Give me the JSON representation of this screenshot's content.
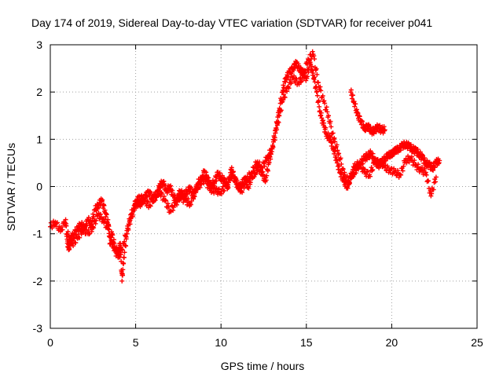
{
  "chart_data": {
    "type": "scatter",
    "title": "Day 174 of 2019, Sidereal Day-to-day VTEC variation (SDTVAR) for receiver p041",
    "xlabel": "GPS time / hours",
    "ylabel": "SDTVAR / TECUs",
    "xlim": [
      0,
      25
    ],
    "ylim": [
      -3,
      3
    ],
    "xticks": [
      "0",
      "5",
      "10",
      "15",
      "20",
      "25"
    ],
    "yticks": [
      "-3",
      "-2",
      "-1",
      "0",
      "1",
      "2",
      "3"
    ],
    "grid": true,
    "marker": "+",
    "series": [
      {
        "name": "SDTVAR",
        "color": "#ff0000",
        "x": [
          0.0,
          0.3,
          0.6,
          0.9,
          1.0,
          1.1,
          1.2,
          1.4,
          1.6,
          1.8,
          2.0,
          2.2,
          2.4,
          2.6,
          2.8,
          3.0,
          3.2,
          3.4,
          3.5,
          3.6,
          3.8,
          4.0,
          4.1,
          4.2,
          4.3,
          4.5,
          4.7,
          4.9,
          5.0,
          5.2,
          5.4,
          5.6,
          5.8,
          6.0,
          6.2,
          6.4,
          6.6,
          6.8,
          7.0,
          7.2,
          7.4,
          7.6,
          7.8,
          8.0,
          8.2,
          8.4,
          8.6,
          8.8,
          9.0,
          9.2,
          9.4,
          9.6,
          9.8,
          10.0,
          10.2,
          10.4,
          10.6,
          10.8,
          11.0,
          11.2,
          11.4,
          11.6,
          11.8,
          12.0,
          12.2,
          12.4,
          12.6,
          12.8,
          13.0,
          13.2,
          13.4,
          13.6,
          13.8,
          14.0,
          14.2,
          14.4,
          14.6,
          14.8,
          15.0,
          15.2,
          15.4,
          15.6,
          15.8,
          16.0,
          16.2,
          16.4,
          16.6,
          16.8,
          17.0,
          17.2,
          17.4,
          17.6,
          17.8,
          18.0,
          18.2,
          18.4,
          18.6,
          18.8,
          19.0,
          19.2,
          19.4,
          19.6,
          19.8,
          20.0,
          20.2,
          20.4,
          20.6,
          20.8,
          21.0,
          21.2,
          21.4,
          21.6,
          21.8,
          22.0,
          22.2,
          22.4,
          22.6,
          22.8
        ],
        "y": [
          -0.85,
          -0.75,
          -0.95,
          -0.7,
          -1.2,
          -1.3,
          -1.1,
          -1.0,
          -0.9,
          -0.8,
          -0.9,
          -0.7,
          -0.8,
          -0.5,
          -0.4,
          -0.3,
          -0.5,
          -0.8,
          -1.2,
          -1.0,
          -1.3,
          -1.4,
          -1.2,
          -2.0,
          -1.5,
          -1.0,
          -0.6,
          -0.5,
          -0.3,
          -0.4,
          -0.3,
          -0.2,
          -0.1,
          -0.3,
          -0.2,
          0.0,
          0.1,
          -0.1,
          0.0,
          -0.2,
          -0.3,
          -0.1,
          -0.2,
          -0.1,
          -0.05,
          -0.2,
          0.0,
          0.05,
          0.3,
          0.2,
          0.0,
          0.1,
          0.25,
          0.2,
          0.1,
          0.0,
          0.35,
          0.2,
          -0.05,
          0.05,
          0.15,
          0.0,
          0.2,
          0.3,
          0.4,
          0.3,
          0.1,
          0.5,
          0.8,
          1.2,
          1.6,
          2.0,
          2.3,
          2.4,
          2.5,
          2.6,
          2.5,
          2.4,
          2.3,
          2.6,
          2.4,
          2.0,
          1.6,
          1.3,
          1.1,
          1.0,
          0.8,
          0.5,
          0.3,
          0.1,
          0.0,
          0.2,
          0.3,
          0.4,
          0.5,
          0.6,
          0.65,
          0.7,
          0.55,
          0.45,
          0.5,
          0.6,
          0.65,
          0.7,
          0.75,
          0.8,
          0.85,
          0.9,
          0.85,
          0.8,
          0.75,
          0.7,
          0.6,
          0.5,
          0.45,
          0.4,
          0.5,
          0.55
        ]
      },
      {
        "name": "SDTVAR-b",
        "color": "#ff0000",
        "x": [
          1.0,
          1.3,
          1.6,
          1.9,
          2.2,
          2.5,
          2.8,
          3.1,
          3.4,
          3.7,
          4.0,
          4.3,
          4.6,
          4.9,
          5.2,
          5.5,
          5.8,
          6.1,
          6.4,
          6.7,
          7.0,
          7.3,
          7.6,
          7.9,
          8.2,
          8.5,
          8.8,
          9.1,
          9.4,
          9.7,
          10.0,
          10.3,
          10.6,
          10.9,
          11.2,
          11.5,
          11.8,
          12.1,
          12.4,
          12.7,
          13.0,
          13.3,
          13.6,
          13.9,
          14.2,
          14.5,
          14.8,
          15.1,
          15.4,
          15.7,
          16.0,
          16.3,
          16.6,
          16.9,
          17.2,
          17.5,
          17.8,
          18.1,
          18.4,
          18.7,
          19.0,
          19.3,
          19.6,
          19.9,
          20.2,
          20.5,
          20.8,
          21.1,
          21.4,
          21.7,
          22.0,
          22.3,
          22.6
        ],
        "y": [
          -1.0,
          -1.2,
          -1.1,
          -0.9,
          -1.0,
          -0.85,
          -0.6,
          -0.7,
          -0.9,
          -1.3,
          -1.5,
          -1.2,
          -0.8,
          -0.5,
          -0.2,
          -0.3,
          -0.4,
          -0.2,
          -0.1,
          -0.3,
          -0.5,
          -0.4,
          -0.2,
          -0.3,
          -0.35,
          -0.1,
          0.2,
          0.1,
          -0.05,
          -0.1,
          -0.1,
          0.0,
          0.25,
          0.1,
          -0.1,
          0.15,
          0.3,
          0.5,
          0.4,
          0.6,
          0.8,
          1.3,
          1.8,
          2.1,
          2.3,
          2.2,
          2.3,
          2.7,
          2.8,
          2.2,
          1.8,
          1.5,
          1.0,
          0.7,
          0.25,
          0.1,
          0.4,
          0.5,
          0.3,
          0.25,
          0.5,
          0.55,
          0.4,
          0.35,
          0.3,
          0.25,
          0.55,
          0.6,
          0.45,
          0.35,
          0.3,
          -0.2,
          0.2
        ]
      },
      {
        "name": "SDTVAR-c",
        "color": "#ff0000",
        "x": [
          17.6,
          17.8,
          18.0,
          18.2,
          18.4,
          18.6,
          18.8,
          19.0,
          19.2,
          19.4,
          19.6
        ],
        "y": [
          2.0,
          1.8,
          1.5,
          1.4,
          1.2,
          1.3,
          1.15,
          1.2,
          1.25,
          1.2,
          1.2
        ]
      }
    ]
  }
}
